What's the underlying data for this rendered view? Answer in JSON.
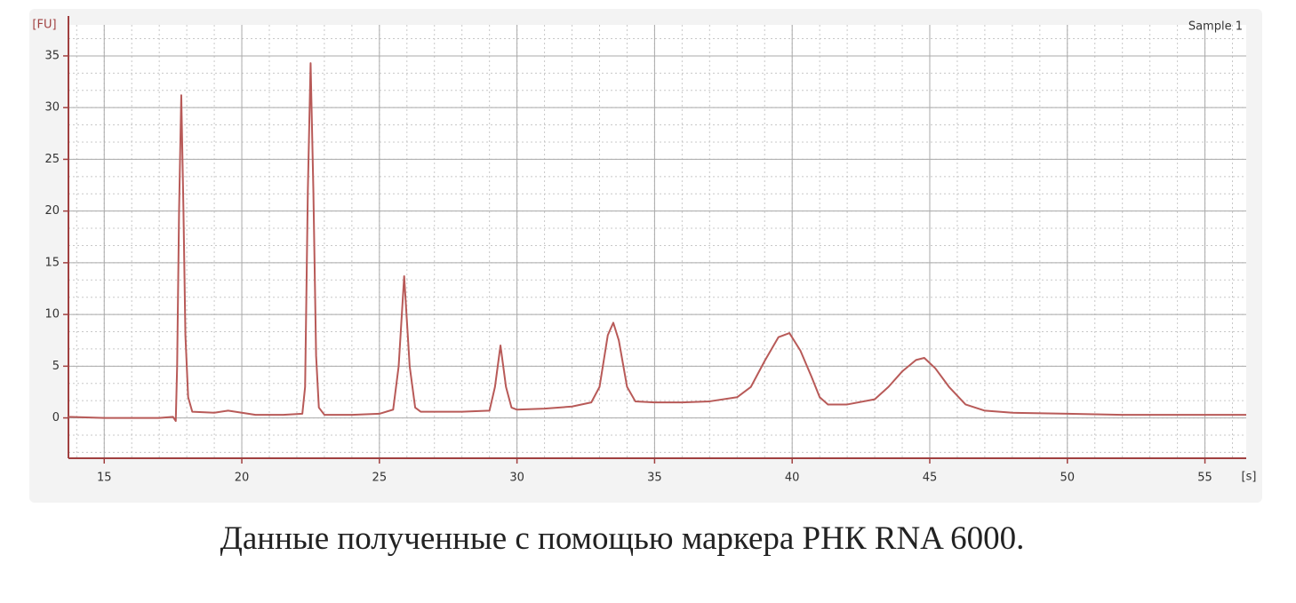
{
  "chart_data": {
    "type": "line",
    "ylabel": "[FU]",
    "xlabel": "[s]",
    "annotation": "Sample 1",
    "color": "#b85a58",
    "xlim": [
      13.7,
      56.5
    ],
    "ylim": [
      -3.9,
      38
    ],
    "xticks": [
      15,
      20,
      25,
      30,
      35,
      40,
      45,
      50,
      55
    ],
    "yticks": [
      0,
      5,
      10,
      15,
      20,
      25,
      30,
      35
    ],
    "grid": true,
    "x": [
      13.7,
      15,
      16,
      17,
      17.5,
      17.6,
      17.65,
      17.72,
      17.8,
      17.88,
      17.95,
      18.05,
      18.2,
      19,
      19.5,
      20,
      20.5,
      21.5,
      22.2,
      22.3,
      22.4,
      22.5,
      22.6,
      22.7,
      22.8,
      23,
      24,
      25,
      25.5,
      25.7,
      25.9,
      26.1,
      26.3,
      26.5,
      28,
      29,
      29.2,
      29.4,
      29.6,
      29.8,
      30,
      31,
      32,
      32.7,
      33,
      33.3,
      33.5,
      33.7,
      34,
      34.3,
      35,
      36,
      37,
      38,
      38.5,
      39,
      39.5,
      39.9,
      40.3,
      40.7,
      41,
      41.3,
      42,
      43,
      43.5,
      44,
      44.5,
      44.8,
      45.2,
      45.7,
      46.3,
      47,
      48,
      50,
      52,
      54,
      56.5
    ],
    "values": [
      0.1,
      0,
      0,
      0,
      0.1,
      -0.3,
      5,
      20,
      31.2,
      20,
      8,
      2,
      0.6,
      0.5,
      0.7,
      0.5,
      0.3,
      0.3,
      0.4,
      3,
      22,
      34.3,
      22,
      6,
      1,
      0.3,
      0.3,
      0.4,
      0.8,
      5,
      13.7,
      5,
      1,
      0.6,
      0.6,
      0.7,
      3,
      7,
      3,
      1,
      0.8,
      0.9,
      1.1,
      1.5,
      3,
      8,
      9.2,
      7.5,
      3,
      1.6,
      1.5,
      1.5,
      1.6,
      2,
      3,
      5.5,
      7.8,
      8.2,
      6.5,
      4,
      2,
      1.3,
      1.3,
      1.8,
      3,
      4.5,
      5.6,
      5.8,
      4.8,
      3,
      1.3,
      0.7,
      0.5,
      0.4,
      0.3,
      0.3,
      0.3
    ]
  },
  "caption": "Данные полученные с помощью маркера РНК RNA 6000."
}
